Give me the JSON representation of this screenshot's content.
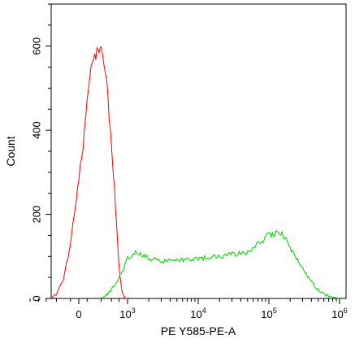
{
  "chart_data": {
    "type": "line",
    "title": "",
    "xlabel": "PE Y585-PE-A",
    "ylabel": "Count",
    "x_scale": "biexponential",
    "ylim": [
      0,
      700
    ],
    "grid": false,
    "legend": "none",
    "y_ticks": [
      0,
      200,
      400,
      600
    ],
    "y_tick_labels": [
      "0",
      "200",
      "400",
      "600"
    ],
    "x_ticks": [
      {
        "base": "0",
        "exp": ""
      },
      {
        "base": "10",
        "exp": "3"
      },
      {
        "base": "10",
        "exp": "4"
      },
      {
        "base": "10",
        "exp": "5"
      },
      {
        "base": "10",
        "exp": "6"
      }
    ],
    "series": [
      {
        "color": "#ff0000",
        "x": [
          -400,
          -300,
          -200,
          -100,
          0,
          50,
          100,
          150,
          200,
          250,
          300,
          350,
          400,
          450,
          500,
          550,
          600,
          650,
          700,
          750,
          800,
          850,
          900,
          950,
          1000
        ],
        "y": [
          0,
          10,
          40,
          130,
          290,
          360,
          460,
          540,
          570,
          595,
          585,
          560,
          520,
          430,
          360,
          300,
          220,
          140,
          80,
          40,
          15,
          6,
          2,
          0,
          0
        ]
      },
      {
        "color": "#00cc00",
        "x": [
          300,
          400,
          500,
          600,
          700,
          800,
          900,
          1000,
          1300,
          2000,
          3000,
          5000,
          10000,
          20000,
          30000,
          50000,
          70000,
          100000,
          130000,
          160000,
          200000,
          300000,
          400000,
          500000,
          700000,
          1000000
        ],
        "y": [
          0,
          8,
          20,
          35,
          50,
          65,
          80,
          95,
          110,
          95,
          90,
          90,
          95,
          100,
          105,
          110,
          130,
          150,
          155,
          150,
          120,
          70,
          40,
          20,
          5,
          0
        ]
      }
    ]
  }
}
